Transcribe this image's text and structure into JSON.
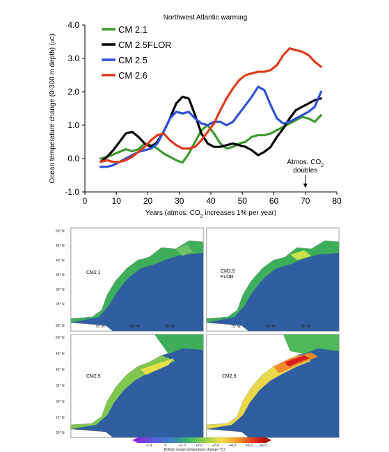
{
  "chart_data": {
    "type": "line",
    "title": "Northwest Atlantic warming",
    "xlabel": "Years (atmos. CO",
    "xlabel_sub": "2",
    "xlabel_rest": " increases 1% per year)",
    "ylabel": "Ocean temperature change (0-300 m depth) (",
    "ylabel_unit": "oC",
    "ylabel_end": ")",
    "xlim": [
      0,
      80
    ],
    "ylim": [
      -1.0,
      4.0
    ],
    "xticks": [
      "0",
      "10",
      "20",
      "30",
      "40",
      "50",
      "60",
      "70",
      "80"
    ],
    "yticks": [
      "-1.0",
      "0.0",
      "1.0",
      "2.0",
      "3.0",
      "4.0"
    ],
    "legend_position": "top-left",
    "annotation": {
      "line1": "Atmos. CO",
      "line1_sub": "2",
      "line2": "doubles",
      "x": 70
    },
    "series": [
      {
        "name": "CM 2.1",
        "color": "#3a9a2c",
        "x": [
          5,
          7,
          9,
          11,
          13,
          15,
          17,
          19,
          21,
          23,
          25,
          27,
          29,
          31,
          33,
          35,
          37,
          39,
          41,
          43,
          45,
          47,
          49,
          51,
          53,
          55,
          57,
          59,
          61,
          63,
          65,
          67,
          69,
          71,
          73,
          75
        ],
        "y": [
          0.0,
          0.05,
          0.12,
          0.2,
          0.28,
          0.22,
          0.28,
          0.45,
          0.4,
          0.3,
          0.15,
          0.05,
          -0.05,
          -0.12,
          0.15,
          0.5,
          0.85,
          1.0,
          0.75,
          0.45,
          0.3,
          0.35,
          0.45,
          0.5,
          0.65,
          0.7,
          0.7,
          0.75,
          0.85,
          0.95,
          1.05,
          1.15,
          1.25,
          1.2,
          1.1,
          1.3
        ]
      },
      {
        "name": "CM 2.5FLOR",
        "color": "#000000",
        "x": [
          5,
          7,
          9,
          11,
          13,
          15,
          17,
          19,
          21,
          23,
          25,
          27,
          29,
          31,
          33,
          35,
          37,
          39,
          41,
          43,
          45,
          47,
          49,
          51,
          53,
          55,
          57,
          59,
          61,
          63,
          65,
          67,
          69,
          71,
          73,
          75
        ],
        "y": [
          -0.1,
          0.05,
          0.25,
          0.5,
          0.75,
          0.8,
          0.65,
          0.45,
          0.35,
          0.5,
          0.8,
          1.2,
          1.65,
          1.85,
          1.8,
          1.3,
          0.75,
          0.45,
          0.35,
          0.35,
          0.4,
          0.45,
          0.4,
          0.35,
          0.25,
          0.1,
          0.2,
          0.35,
          0.65,
          0.9,
          1.2,
          1.45,
          1.55,
          1.65,
          1.75,
          1.8
        ]
      },
      {
        "name": "CM 2.5",
        "color": "#2f4fd6",
        "x": [
          5,
          7,
          9,
          11,
          13,
          15,
          17,
          19,
          21,
          23,
          25,
          27,
          29,
          31,
          33,
          35,
          37,
          39,
          41,
          43,
          45,
          47,
          49,
          51,
          53,
          55,
          57,
          59,
          61,
          63,
          65,
          67,
          69,
          71,
          73,
          75
        ],
        "y": [
          -0.25,
          -0.25,
          -0.2,
          -0.1,
          0.0,
          0.1,
          0.2,
          0.25,
          0.3,
          0.45,
          0.8,
          1.2,
          1.4,
          1.35,
          1.4,
          1.2,
          1.05,
          1.0,
          1.1,
          1.1,
          1.0,
          1.1,
          1.35,
          1.6,
          1.85,
          2.15,
          2.05,
          1.6,
          1.2,
          1.05,
          1.1,
          1.2,
          1.3,
          1.4,
          1.55,
          2.0
        ]
      },
      {
        "name": "CM 2.6",
        "color": "#dd3a1a",
        "x": [
          5,
          7,
          9,
          11,
          13,
          15,
          17,
          19,
          21,
          23,
          25,
          27,
          29,
          31,
          33,
          35,
          37,
          39,
          41,
          43,
          45,
          47,
          49,
          51,
          53,
          55,
          57,
          59,
          61,
          63,
          65,
          67,
          69,
          71,
          73,
          75
        ],
        "y": [
          -0.1,
          -0.05,
          -0.1,
          -0.1,
          -0.05,
          0.05,
          0.2,
          0.35,
          0.55,
          0.7,
          0.75,
          0.55,
          0.4,
          0.3,
          0.3,
          0.35,
          0.55,
          0.8,
          1.05,
          1.45,
          1.8,
          2.1,
          2.35,
          2.5,
          2.55,
          2.6,
          2.6,
          2.65,
          2.8,
          3.1,
          3.3,
          3.25,
          3.2,
          3.1,
          2.9,
          2.75
        ]
      }
    ]
  },
  "maps": {
    "panels": [
      {
        "label": "CM2.1"
      },
      {
        "label_line1": "CM2.5",
        "label_line2": "FLOR"
      },
      {
        "label": "CM2.5"
      },
      {
        "label": "CM2.6"
      }
    ],
    "lat_labels": [
      "50° N",
      "45° N",
      "40° N",
      "35° N",
      "30° N",
      "25° N",
      "20° N"
    ],
    "lon_labels": [
      "75° W",
      "65° W",
      "55° W"
    ],
    "colorbar": {
      "ticks": [
        "-1.0",
        "0",
        "+1.0",
        "+2.0",
        "+3.0",
        "+4.0",
        "+5.0",
        "+6.0"
      ],
      "title": "Bottom ocean temperature change (°C)"
    }
  }
}
